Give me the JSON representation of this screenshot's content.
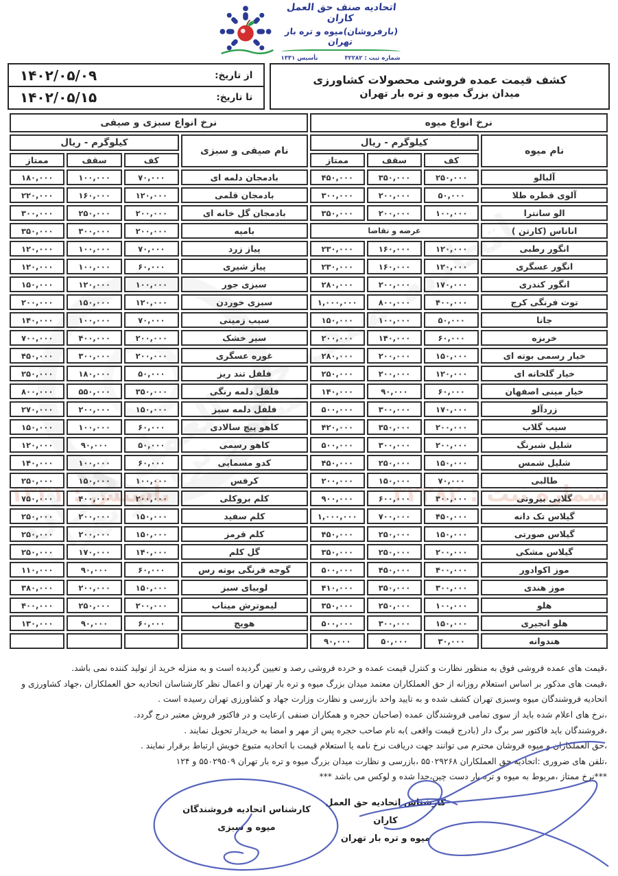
{
  "logo": {
    "org_line1": "اتحادیه صنف حق العمل کاران",
    "org_line2": "(بارفروشان)میوه و تره بار تهران",
    "registration": "شماره ثبت : ۳۲۲۸۲",
    "founded": "تأسیس ۱۳۳۱"
  },
  "header": {
    "title_line1": "کشف قیمت عمده فروشی محصولات کشاورزی",
    "title_line2": "میدان بزرگ میوه و تره بار تهران",
    "from_date_label": "از تاریخ:",
    "from_date_value": "۱۴۰۲/۰۵/۰۹",
    "to_date_label": "تا تاریخ:",
    "to_date_value": "۱۴۰۲/۰۵/۱۵"
  },
  "fruit_section": {
    "section_title": "نرخ انواع میوه",
    "name_header": "نام میوه",
    "unit_header": "کیلوگرم - ریال",
    "col_headers": [
      "کف",
      "سقف",
      "ممتاز"
    ],
    "rows": [
      {
        "name": "آلبالو",
        "kaf": "۲۵۰,۰۰۰",
        "saqf": "۳۵۰,۰۰۰",
        "momtaz": "۴۵۰,۰۰۰"
      },
      {
        "name": "آلوی قطره طلا",
        "kaf": "۵۰,۰۰۰",
        "saqf": "۲۰۰,۰۰۰",
        "momtaz": "۳۰۰,۰۰۰"
      },
      {
        "name": "الو سانترا",
        "kaf": "۱۰۰,۰۰۰",
        "saqf": "۲۰۰,۰۰۰",
        "momtaz": "۳۵۰,۰۰۰"
      },
      {
        "name": "اناناس (کارتن )",
        "note": "عرضه و تقاضا"
      },
      {
        "name": "انگور رطبی",
        "kaf": "۱۲۰,۰۰۰",
        "saqf": "۱۶۰,۰۰۰",
        "momtaz": "۲۳۰,۰۰۰"
      },
      {
        "name": "انگور عسگری",
        "kaf": "۱۲۰,۰۰۰",
        "saqf": "۱۶۰,۰۰۰",
        "momtaz": "۲۳۰,۰۰۰"
      },
      {
        "name": "انگور کندری",
        "kaf": "۱۷۰,۰۰۰",
        "saqf": "۲۰۰,۰۰۰",
        "momtaz": "۲۸۰,۰۰۰"
      },
      {
        "name": "توت فرنگی کرج",
        "kaf": "۴۰۰,۰۰۰",
        "saqf": "۸۰۰,۰۰۰",
        "momtaz": "۱,۰۰۰,۰۰۰"
      },
      {
        "name": "جانا",
        "kaf": "۵۰,۰۰۰",
        "saqf": "۱۰۰,۰۰۰",
        "momtaz": "۱۵۰,۰۰۰"
      },
      {
        "name": "خربزه",
        "kaf": "۶۰,۰۰۰",
        "saqf": "۱۴۰,۰۰۰",
        "momtaz": "۲۰۰,۰۰۰"
      },
      {
        "name": "خیار رسمی بوته ای",
        "kaf": "۱۵۰,۰۰۰",
        "saqf": "۲۰۰,۰۰۰",
        "momtaz": "۲۸۰,۰۰۰"
      },
      {
        "name": "خیار گلخانه ای",
        "kaf": "۱۲۰,۰۰۰",
        "saqf": "۲۰۰,۰۰۰",
        "momtaz": "۲۵۰,۰۰۰"
      },
      {
        "name": "خیار مینی اصفهان",
        "kaf": "۶۰,۰۰۰",
        "saqf": "۹۰,۰۰۰",
        "momtaz": "۱۴۰,۰۰۰"
      },
      {
        "name": "زردآلو",
        "kaf": "۱۷۰,۰۰۰",
        "saqf": "۳۰۰,۰۰۰",
        "momtaz": "۵۰۰,۰۰۰"
      },
      {
        "name": "سیب گلاب",
        "kaf": "۲۰۰,۰۰۰",
        "saqf": "۳۵۰,۰۰۰",
        "momtaz": "۴۲۰,۰۰۰"
      },
      {
        "name": "شلیل شبرنگ",
        "kaf": "۲۰۰,۰۰۰",
        "saqf": "۳۰۰,۰۰۰",
        "momtaz": "۵۰۰,۰۰۰"
      },
      {
        "name": "شلیل شمس",
        "kaf": "۱۵۰,۰۰۰",
        "saqf": "۲۵۰,۰۰۰",
        "momtaz": "۴۵۰,۰۰۰"
      },
      {
        "name": "طالبی",
        "kaf": "۷۰,۰۰۰",
        "saqf": "۱۵۰,۰۰۰",
        "momtaz": "۲۰۰,۰۰۰"
      },
      {
        "name": "گلابی بیروتی",
        "kaf": "۳۰۰,۰۰۰",
        "saqf": "۶۰۰,۰۰۰",
        "momtaz": "۹۰۰,۰۰۰"
      },
      {
        "name": "گیلاس تک دانه",
        "kaf": "۴۵۰,۰۰۰",
        "saqf": "۷۰۰,۰۰۰",
        "momtaz": "۱,۰۰۰,۰۰۰"
      },
      {
        "name": "گیلاس صورتی",
        "kaf": "۱۵۰,۰۰۰",
        "saqf": "۲۵۰,۰۰۰",
        "momtaz": "۴۵۰,۰۰۰"
      },
      {
        "name": "گیلاس مشکی",
        "kaf": "۲۰۰,۰۰۰",
        "saqf": "۲۵۰,۰۰۰",
        "momtaz": "۳۵۰,۰۰۰"
      },
      {
        "name": "موز اکوادور",
        "kaf": "۴۰۰,۰۰۰",
        "saqf": "۴۵۰,۰۰۰",
        "momtaz": "۵۰۰,۰۰۰"
      },
      {
        "name": "موز هندی",
        "kaf": "۳۰۰,۰۰۰",
        "saqf": "۳۵۰,۰۰۰",
        "momtaz": "۴۱۰,۰۰۰"
      },
      {
        "name": "هلو",
        "kaf": "۱۰۰,۰۰۰",
        "saqf": "۲۵۰,۰۰۰",
        "momtaz": "۳۵۰,۰۰۰"
      },
      {
        "name": "هلو انجیری",
        "kaf": "۱۵۰,۰۰۰",
        "saqf": "۳۰۰,۰۰۰",
        "momtaz": "۵۰۰,۰۰۰"
      },
      {
        "name": "هندوانه",
        "kaf": "۳۰,۰۰۰",
        "saqf": "۵۰,۰۰۰",
        "momtaz": "۹۰,۰۰۰"
      }
    ]
  },
  "veg_section": {
    "section_title": "نرخ انواع سبزی و صیفی",
    "name_header": "نام صیفی و سبزی",
    "unit_header": "کیلوگرم - ریال",
    "col_headers": [
      "کف",
      "سقف",
      "ممتاز"
    ],
    "rows": [
      {
        "name": "بادمجان دلمه ای",
        "kaf": "۷۰,۰۰۰",
        "saqf": "۱۰۰,۰۰۰",
        "momtaz": "۱۸۰,۰۰۰"
      },
      {
        "name": "بادمجان قلمی",
        "kaf": "۱۲۰,۰۰۰",
        "saqf": "۱۶۰,۰۰۰",
        "momtaz": "۲۲۰,۰۰۰"
      },
      {
        "name": "بادمجان گل خانه ای",
        "kaf": "۲۰۰,۰۰۰",
        "saqf": "۲۵۰,۰۰۰",
        "momtaz": "۳۰۰,۰۰۰"
      },
      {
        "name": "بامیه",
        "kaf": "۲۰۰,۰۰۰",
        "saqf": "۳۰۰,۰۰۰",
        "momtaz": "۳۵۰,۰۰۰"
      },
      {
        "name": "پیاز زرد",
        "kaf": "۷۰,۰۰۰",
        "saqf": "۱۰۰,۰۰۰",
        "momtaz": "۱۲۰,۰۰۰"
      },
      {
        "name": "پیاز شیری",
        "kaf": "۶۰,۰۰۰",
        "saqf": "۱۰۰,۰۰۰",
        "momtaz": "۱۲۰,۰۰۰"
      },
      {
        "name": "سبزی جور",
        "kaf": "۱۰۰,۰۰۰",
        "saqf": "۱۲۰,۰۰۰",
        "momtaz": "۱۵۰,۰۰۰"
      },
      {
        "name": "سبزی خوردن",
        "kaf": "۱۲۰,۰۰۰",
        "saqf": "۱۵۰,۰۰۰",
        "momtaz": "۲۰۰,۰۰۰"
      },
      {
        "name": "سیب زمینی",
        "kaf": "۷۰,۰۰۰",
        "saqf": "۱۰۰,۰۰۰",
        "momtaz": "۱۴۰,۰۰۰"
      },
      {
        "name": "سیر خشک",
        "kaf": "۲۰۰,۰۰۰",
        "saqf": "۴۰۰,۰۰۰",
        "momtaz": "۷۰۰,۰۰۰"
      },
      {
        "name": "غوره عسگری",
        "kaf": "۲۰۰,۰۰۰",
        "saqf": "۳۰۰,۰۰۰",
        "momtaz": "۴۵۰,۰۰۰"
      },
      {
        "name": "فلفل تند ریز",
        "kaf": "۵۰,۰۰۰",
        "saqf": "۱۸۰,۰۰۰",
        "momtaz": "۲۵۰,۰۰۰"
      },
      {
        "name": "فلفل دلمه رنگی",
        "kaf": "۳۵۰,۰۰۰",
        "saqf": "۵۵۰,۰۰۰",
        "momtaz": "۸۰۰,۰۰۰"
      },
      {
        "name": "فلفل دلمه سبز",
        "kaf": "۱۵۰,۰۰۰",
        "saqf": "۲۰۰,۰۰۰",
        "momtaz": "۲۷۰,۰۰۰"
      },
      {
        "name": "کاهو پیچ سالادی",
        "kaf": "۶۰,۰۰۰",
        "saqf": "۱۰۰,۰۰۰",
        "momtaz": "۱۵۰,۰۰۰"
      },
      {
        "name": "کاهو رسمی",
        "kaf": "۵۰,۰۰۰",
        "saqf": "۹۰,۰۰۰",
        "momtaz": "۱۲۰,۰۰۰"
      },
      {
        "name": "کدو مسمایی",
        "kaf": "۶۰,۰۰۰",
        "saqf": "۱۰۰,۰۰۰",
        "momtaz": "۱۴۰,۰۰۰"
      },
      {
        "name": "کرفس",
        "kaf": "۱۰۰,۰۰۰",
        "saqf": "۱۵۰,۰۰۰",
        "momtaz": "۲۵۰,۰۰۰"
      },
      {
        "name": "کلم بروکلی",
        "kaf": "۲۰۰,۰۰۰",
        "saqf": "۴۰۰,۰۰۰",
        "momtaz": "۷۵۰,۰۰۰"
      },
      {
        "name": "کلم سفید",
        "kaf": "۱۵۰,۰۰۰",
        "saqf": "۲۰۰,۰۰۰",
        "momtaz": "۲۵۰,۰۰۰"
      },
      {
        "name": "کلم قرمز",
        "kaf": "۱۵۰,۰۰۰",
        "saqf": "۲۰۰,۰۰۰",
        "momtaz": "۲۵۰,۰۰۰"
      },
      {
        "name": "گل کلم",
        "kaf": "۱۴۰,۰۰۰",
        "saqf": "۱۷۰,۰۰۰",
        "momtaz": "۲۵۰,۰۰۰"
      },
      {
        "name": "گوجه فرنگی بوته رس",
        "kaf": "۶۰,۰۰۰",
        "saqf": "۹۰,۰۰۰",
        "momtaz": "۱۱۰,۰۰۰"
      },
      {
        "name": "لوبیای سبز",
        "kaf": "۱۵۰,۰۰۰",
        "saqf": "۲۰۰,۰۰۰",
        "momtaz": "۳۸۰,۰۰۰"
      },
      {
        "name": "لیموترش میناب",
        "kaf": "۲۰۰,۰۰۰",
        "saqf": "۲۵۰,۰۰۰",
        "momtaz": "۴۰۰,۰۰۰"
      },
      {
        "name": "هویج",
        "kaf": "۶۰,۰۰۰",
        "saqf": "۹۰,۰۰۰",
        "momtaz": "۱۳۰,۰۰۰"
      }
    ]
  },
  "notes": [
    "،قیمت های عمده فروشی فوق به منظور نظارت و کنترل قیمت عمده و خرده فروشی رصد و تعیین گردیده است و به منزله خرید از تولید کننده نمی باشد.",
    "،قیمت های مذکور بر اساس استعلام روزانه از حق العملکاران معتمد میدان بزرگ میوه و تره بار تهران و اعمال نظر کارشناسان اتحادیه حق العملکاران ،جهاد کشاورزی و اتحادیه فروشندگان میوه وسبزی تهران کشف شده و به تایید واحد بازرسی و نظارت وزارت جهاد و کشاورزی تهران رسیده است .",
    "،نرخ های اعلام شده باید از سوی تمامی فروشندگان عمده (صاحبان حجره و همکاران صنفی )رعایت و در فاکتور فروش معتبر درج گردد.",
    "،فروشندگان باید فاکتور سر برگ دار (بادرج قیمت واقعی )به نام صاحب حجره پس از مهر و امضا به خریدار تحویل نمایند .",
    "،حق العملکاران و میوه فروشان محترم می توانند جهت دریافت نرخ نامه یا استعلام قیمت با اتحادیه متبوع خویش ارتباط برقرار نمایند .",
    "،تلفن های ضروری :اتحادیه حق العملکاران ۵۵۰۲۹۲۶۸ ،بازرسی و نظارت میدان بزرگ میوه و تره بار تهران ۵۵۰۲۹۵۰۹ و ۱۲۴",
    "***نرخ ممتاز ،مربوط به میوه و تره بار دست چین،جدا شده و لوکس می باشد ***"
  ],
  "signatures": {
    "right_line1": "کارشناس اتحادیه حق العمل کاران",
    "right_line2": "میوه و تره بار تهران",
    "left_line1": "کارشناس اتحادیه فروشندگان",
    "left_line2": "میوه و سبزی"
  },
  "watermark": {
    "ghost_text1": "اتحادیه صنف حق العمل کاران",
    "ghost_text2": "میوه و تره بار تهران",
    "band_registration": "شماره ثبت : ۳۲۲۸۲",
    "band_founded": "تأسیس : ۱۳۳۱"
  },
  "colors": {
    "logo_navy": "#2b3a94",
    "logo_red": "#d42f2f",
    "logo_green": "#2f9e4f",
    "signature_blue": "#4353b5",
    "border_dark": "#2e2e2e"
  }
}
